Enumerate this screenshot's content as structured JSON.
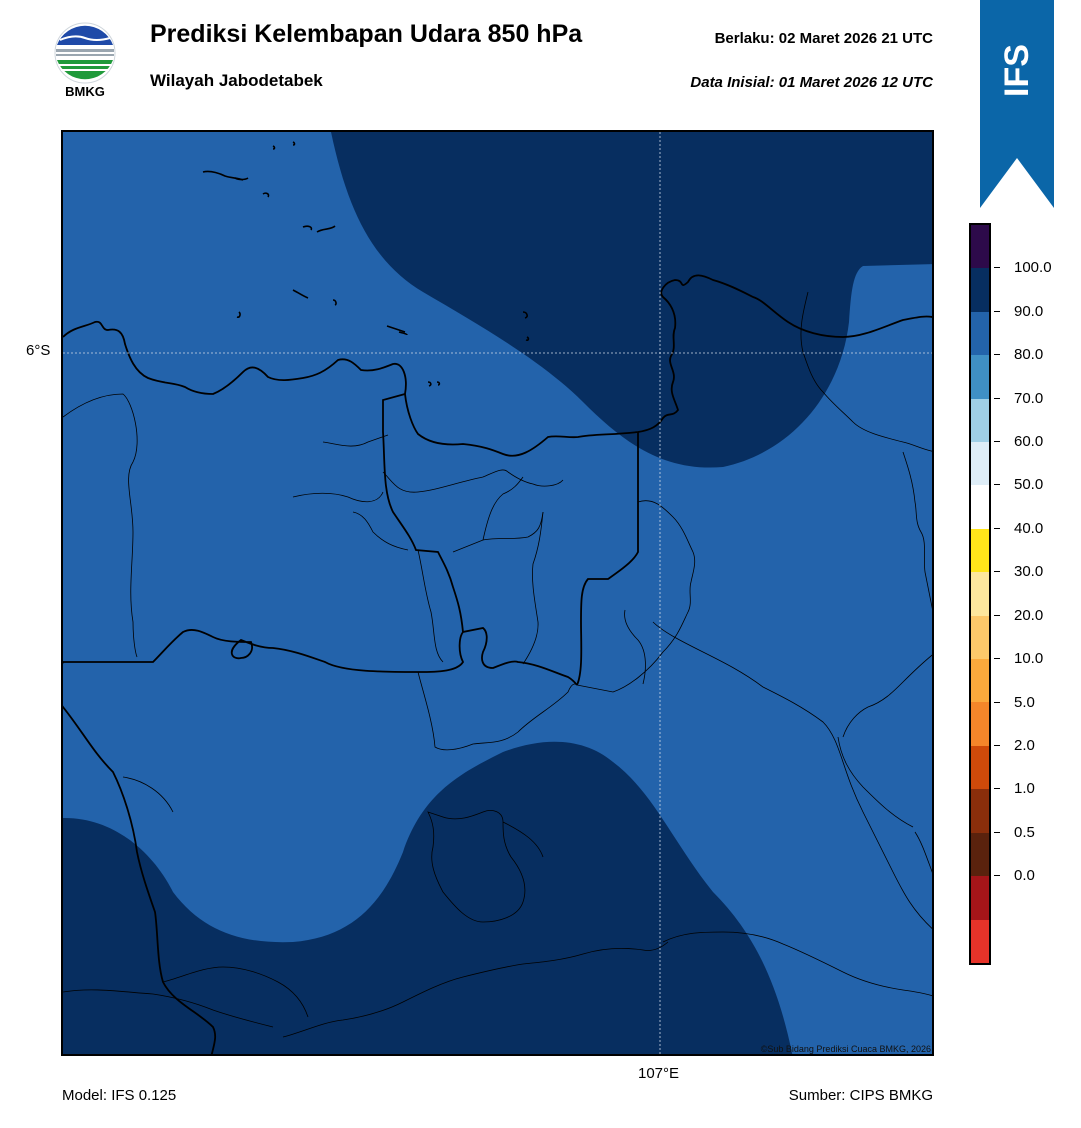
{
  "header": {
    "logo_text": "BMKG",
    "title": "Prediksi Kelembapan Udara 850 hPa",
    "subtitle": "Wilayah Jabodetabek",
    "valid": "Berlaku:  02 Maret 2026 21 UTC",
    "initial": "Data Inisial:  01 Maret 2026 12 UTC"
  },
  "banner": {
    "text": "IFS",
    "color": "#0b66a8"
  },
  "map": {
    "lat_label": "6°S",
    "lon_label": "107°E",
    "credit": "©Sub Bidang Prediksi Cuaca BMKG, 2026",
    "fill_80_90": "#2363ab",
    "fill_90_100": "#072e60"
  },
  "footer": {
    "model": "Model: IFS 0.125",
    "source": "Sumber: CIPS BMKG"
  },
  "colorbar": {
    "colors": [
      "#2d0a4a",
      "#072e60",
      "#2363ab",
      "#3f8fc4",
      "#9fcfe6",
      "#deedf7",
      "#ffffff",
      "#ffe51a",
      "#fde79e",
      "#fcc86a",
      "#fba93c",
      "#f5862a",
      "#cf4a0a",
      "#8a2e0b",
      "#5a220d",
      "#a51519",
      "#e63329"
    ],
    "labels": [
      "100.0",
      "90.0",
      "80.0",
      "70.0",
      "60.0",
      "50.0",
      "40.0",
      "30.0",
      "20.0",
      "10.0",
      "5.0",
      "2.0",
      "1.0",
      "0.5",
      "0.0"
    ]
  }
}
